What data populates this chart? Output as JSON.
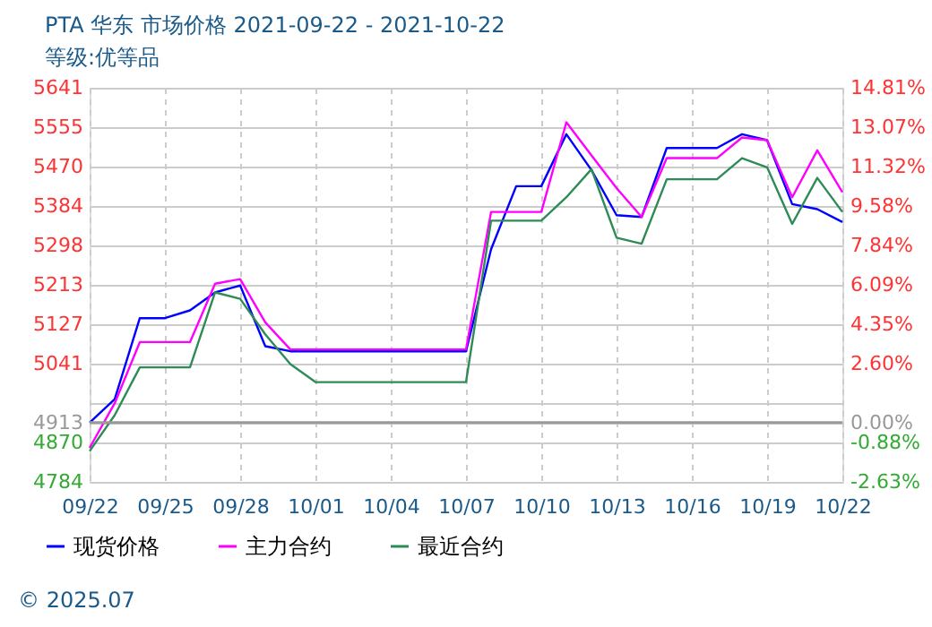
{
  "chart_data": {
    "type": "line",
    "title": "PTA 华东 市场价格 2021-09-22 - 2021-10-22",
    "subtitle": "等级:优等品",
    "x": [
      "2021-09-22",
      "2021-09-23",
      "2021-09-24",
      "2021-09-25",
      "2021-09-26",
      "2021-09-27",
      "2021-09-28",
      "2021-09-29",
      "2021-09-30",
      "2021-10-01",
      "2021-10-02",
      "2021-10-03",
      "2021-10-04",
      "2021-10-05",
      "2021-10-06",
      "2021-10-07",
      "2021-10-08",
      "2021-10-09",
      "2021-10-10",
      "2021-10-11",
      "2021-10-12",
      "2021-10-13",
      "2021-10-14",
      "2021-10-15",
      "2021-10-16",
      "2021-10-17",
      "2021-10-18",
      "2021-10-19",
      "2021-10-20",
      "2021-10-21",
      "2021-10-22"
    ],
    "series": [
      {
        "name": "现货价格",
        "color": "#0000ff",
        "values": [
          4913,
          4964,
          5140,
          5140,
          5157,
          5196,
          5211,
          5079,
          5068,
          5068,
          5068,
          5068,
          5068,
          5068,
          5068,
          5068,
          5290,
          5427,
          5427,
          5540,
          5462,
          5364,
          5360,
          5510,
          5510,
          5510,
          5540,
          5527,
          5388,
          5377,
          5349
        ]
      },
      {
        "name": "主力合约",
        "color": "#ff00ff",
        "values": [
          4858,
          4955,
          5088,
          5088,
          5088,
          5215,
          5225,
          5131,
          5072,
          5072,
          5072,
          5072,
          5072,
          5072,
          5072,
          5072,
          5371,
          5371,
          5371,
          5566,
          5494,
          5423,
          5360,
          5488,
          5488,
          5488,
          5533,
          5527,
          5403,
          5505,
          5414
        ]
      },
      {
        "name": "最近合约",
        "color": "#2e8b57",
        "values": [
          4851,
          4929,
          5033,
          5033,
          5033,
          5196,
          5182,
          5105,
          5040,
          5001,
          5001,
          5001,
          5001,
          5001,
          5001,
          5001,
          5352,
          5352,
          5352,
          5403,
          5464,
          5315,
          5302,
          5442,
          5442,
          5442,
          5488,
          5468,
          5345,
          5445,
          5371
        ]
      }
    ],
    "xlim": [
      "2021-09-22",
      "2021-10-22"
    ],
    "xticks": [
      {
        "value": "2021-09-22",
        "label": "09/22"
      },
      {
        "value": "2021-09-25",
        "label": "09/25"
      },
      {
        "value": "2021-09-28",
        "label": "09/28"
      },
      {
        "value": "2021-10-01",
        "label": "10/01"
      },
      {
        "value": "2021-10-04",
        "label": "10/04"
      },
      {
        "value": "2021-10-07",
        "label": "10/07"
      },
      {
        "value": "2021-10-10",
        "label": "10/10"
      },
      {
        "value": "2021-10-13",
        "label": "10/13"
      },
      {
        "value": "2021-10-16",
        "label": "10/16"
      },
      {
        "value": "2021-10-19",
        "label": "10/19"
      },
      {
        "value": "2021-10-22",
        "label": "10/22"
      }
    ],
    "ylim": [
      4784,
      5641
    ],
    "yticks": [
      4784,
      4870,
      4913,
      {
        "value": 4956,
        "label": null
      },
      5041,
      5127,
      5213,
      5298,
      5384,
      5470,
      5555,
      5641
    ],
    "y2lim": [
      -2.63,
      14.81
    ],
    "y2ticks": [
      {
        "value": -2.63,
        "label": "-2.63%"
      },
      {
        "value": -0.88,
        "label": "-0.88%"
      },
      {
        "value": 0,
        "label": "0.00%"
      },
      {
        "value": 0.88,
        "label": null
      },
      {
        "value": 2.6,
        "label": "2.60%"
      },
      {
        "value": 4.35,
        "label": "4.35%"
      },
      {
        "value": 6.09,
        "label": "6.09%"
      },
      {
        "value": 7.84,
        "label": "7.84%"
      },
      {
        "value": 9.58,
        "label": "9.58%"
      },
      {
        "value": 11.32,
        "label": "11.32%"
      },
      {
        "value": 13.07,
        "label": "13.07%"
      },
      {
        "value": 14.81,
        "label": "14.81%"
      }
    ],
    "ref_lines": [
      {
        "axis": "y",
        "value": 4913,
        "color": "#999999",
        "line_style": "solid"
      }
    ],
    "grid": true,
    "legend": "bottom",
    "line_style": "solid",
    "marker": "none",
    "annotations": [
      "© 2025.07"
    ]
  }
}
